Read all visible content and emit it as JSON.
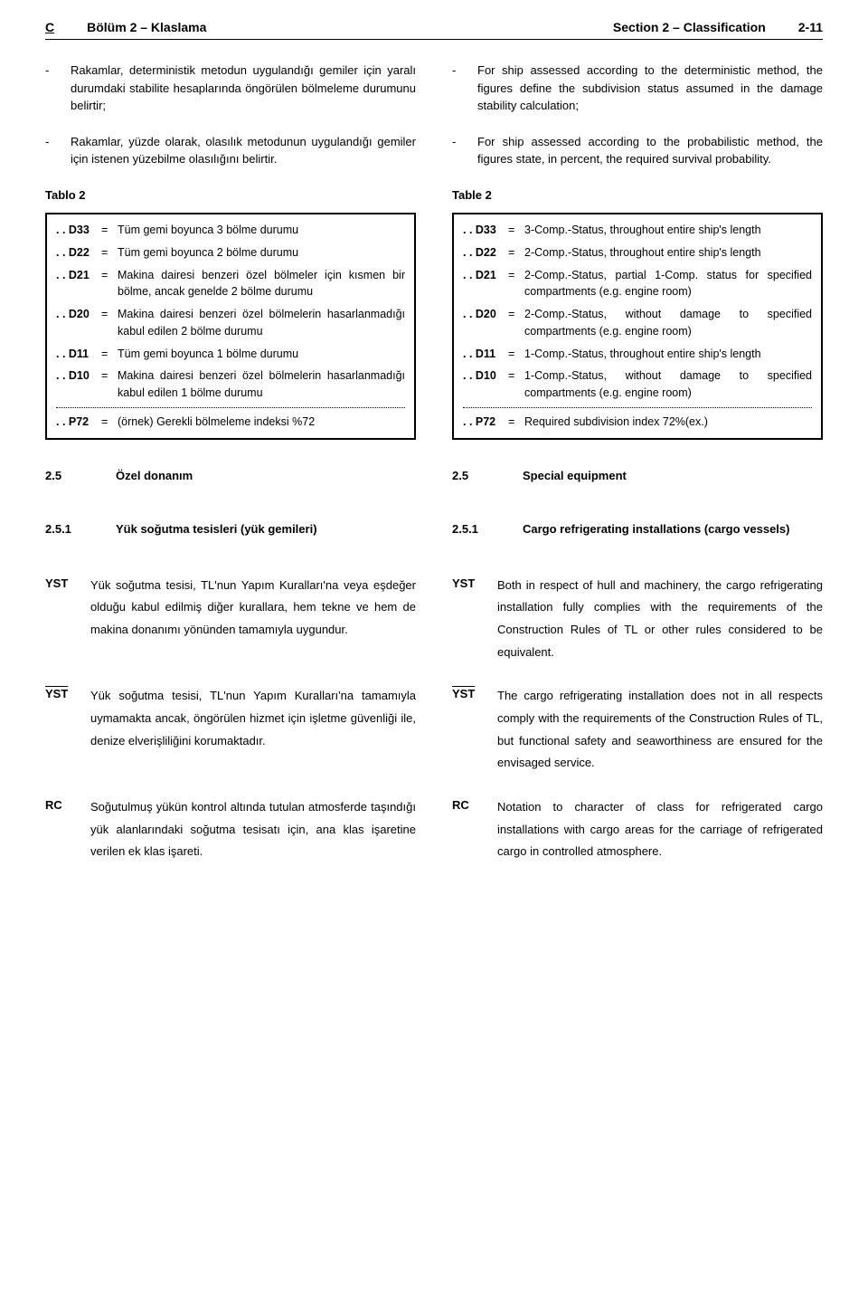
{
  "header": {
    "letter": "C",
    "left_title": "Bölüm 2 – Klaslama",
    "right_title": "Section 2 – Classification",
    "page": "2-11"
  },
  "para1": {
    "left": "Rakamlar, deterministik metodun uygulandığı gemiler için yaralı durumdaki stabilite hesaplarında öngörülen bölmeleme durumunu belirtir;",
    "right": "For ship assessed according to the deterministic method, the figures define the subdivision status assumed in the damage stability calculation;"
  },
  "para2": {
    "left": "Rakamlar, yüzde olarak, olasılık metodunun uygulandığı gemiler için istenen yüzebilme olasılığını belirtir.",
    "right": "For ship assessed according to the probabilistic method, the figures state, in percent, the required survival probability."
  },
  "tableLabels": {
    "left": "Tablo 2",
    "right": "Table 2"
  },
  "tableLeft": [
    {
      "code": ". . D33",
      "desc": "Tüm gemi boyunca 3 bölme durumu"
    },
    {
      "code": ". . D22",
      "desc": "Tüm gemi boyunca 2 bölme durumu"
    },
    {
      "code": ". . D21",
      "desc": "Makina dairesi benzeri özel bölmeler için kısmen bir bölme, ancak genelde 2 bölme durumu"
    },
    {
      "code": ". . D20",
      "desc": "Makina dairesi benzeri özel bölmelerin hasarlanmadığı kabul edilen 2 bölme durumu"
    },
    {
      "code": ". . D11",
      "desc": "Tüm gemi boyunca 1 bölme durumu"
    },
    {
      "code": ". . D10",
      "desc": "Makina dairesi benzeri özel bölmelerin hasarlanmadığı kabul edilen 1 bölme durumu"
    }
  ],
  "tableLeftLast": {
    "code": ". . P72",
    "desc": "(örnek) Gerekli bölmeleme indeksi %72"
  },
  "tableRight": [
    {
      "code": ". . D33",
      "desc": "3-Comp.-Status, throughout entire ship's length"
    },
    {
      "code": ". . D22",
      "desc": "2-Comp.-Status, throughout entire ship's length"
    },
    {
      "code": ". . D21",
      "desc": "2-Comp.-Status, partial 1-Comp. status for specified compartments (e.g. engine room)"
    },
    {
      "code": ". . D20",
      "desc": "2-Comp.-Status, without damage to specified compartments (e.g. engine room)"
    },
    {
      "code": ". . D11",
      "desc": "1-Comp.-Status, throughout entire ship's length"
    },
    {
      "code": ". . D10",
      "desc": "1-Comp.-Status, without damage to specified compartments (e.g. engine room)"
    }
  ],
  "tableRightLast": {
    "code": ". . P72",
    "desc": "Required subdivision index 72%(ex.)"
  },
  "sec25": {
    "num": "2.5",
    "left": "Özel donanım",
    "right": "Special equipment"
  },
  "sec251": {
    "num": "2.5.1",
    "left": "Yük soğutma tesisleri (yük gemileri)",
    "right": "Cargo refrigerating installations (cargo vessels)"
  },
  "yst1": {
    "tag": "YST",
    "left": "Yük soğutma tesisi, TL'nun Yapım Kuralları'na veya eşdeğer olduğu kabul edilmiş diğer kurallara, hem tekne ve hem de makina donanımı yönünden tamamıyla uygundur.",
    "right": "Both in respect of hull and machinery, the cargo refrigerating installation fully complies with the requirements of the Construction Rules of TL or other rules considered to be equivalent."
  },
  "yst2": {
    "tag": "YST",
    "left": "Yük soğutma tesisi, TL'nun Yapım Kuralları'na tamamıyla uymamakta ancak, öngörülen hizmet için işletme güvenliği ile, denize elverişliliğini korumaktadır.",
    "right": "The cargo refrigerating installation does not in all respects comply with the requirements of the Construction Rules of TL, but functional safety and seaworthiness are ensured for the envisaged service."
  },
  "rc": {
    "tag": "RC",
    "left": "Soğutulmuş yükün kontrol altında tutulan atmosferde taşındığı yük alanlarındaki soğutma tesisatı için, ana klas işaretine verilen ek klas işareti.",
    "right": "Notation to character of class for refrigerated cargo installations with cargo areas for the carriage of refrigerated cargo in controlled atmosphere."
  }
}
